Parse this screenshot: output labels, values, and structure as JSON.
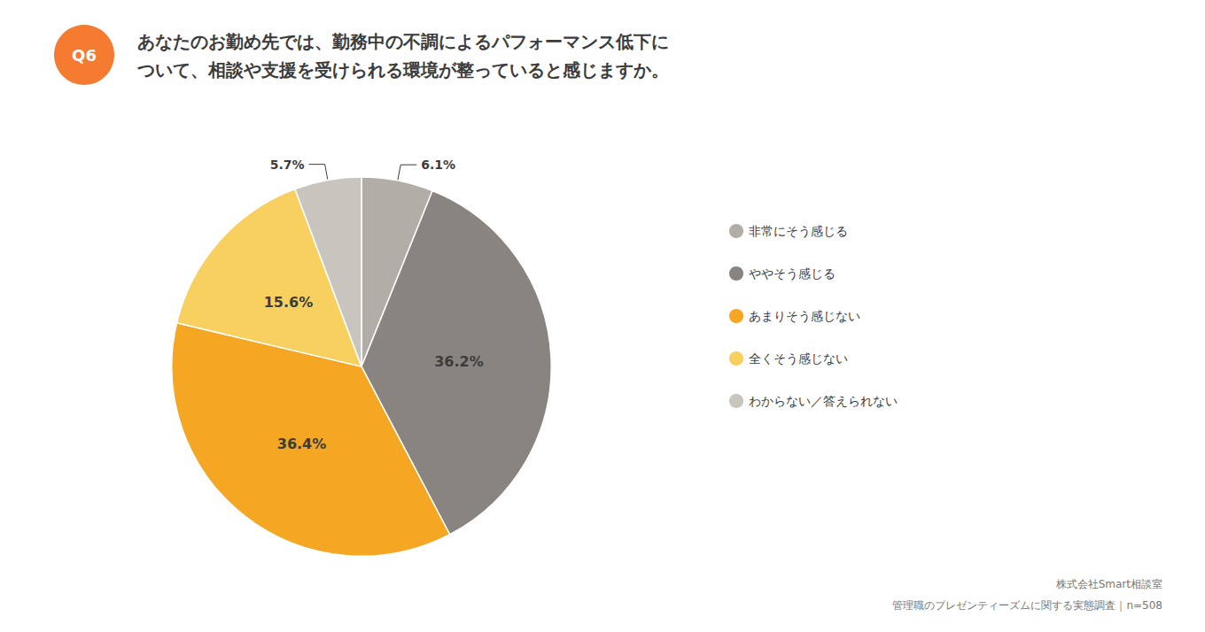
{
  "chart_data": {
    "type": "pie",
    "title": "あなたのお勤め先では、勤務中の不調によるパフォーマンス低下に\nついて、相談や支援を受けられる環境が整っていると感じますか。",
    "categories": [
      "非常にそう感じる",
      "ややそう感じる",
      "あまりそう感じない",
      "全くそう感じない",
      "わからない／答えられない"
    ],
    "values": [
      6.1,
      36.2,
      36.4,
      15.6,
      5.7
    ],
    "value_labels": [
      "6.1%",
      "36.2%",
      "36.4%",
      "15.6%",
      "5.7%"
    ],
    "colors": [
      "#B2ADA7",
      "#8A8480",
      "#F5A623",
      "#F7D060",
      "#C8C4BE"
    ],
    "data_labels": true,
    "legend": "right",
    "annotations": [
      {
        "text": "Q6",
        "color": "#F47B30"
      },
      {
        "text": "株式会社Smart相談室"
      },
      {
        "text": "管理職のプレゼンティーズムに関する実態調査｜n=508"
      }
    ]
  }
}
